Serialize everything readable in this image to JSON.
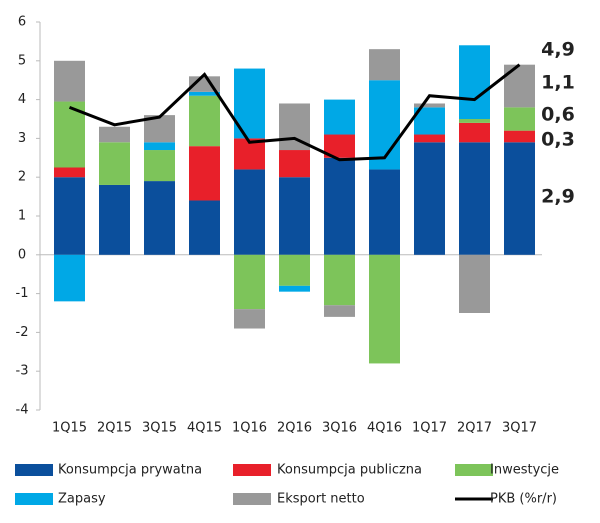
{
  "chart_data": {
    "type": "bar",
    "stacked": true,
    "categories": [
      "1Q15",
      "2Q15",
      "3Q15",
      "4Q15",
      "1Q16",
      "2Q16",
      "3Q16",
      "4Q16",
      "1Q17",
      "2Q17",
      "3Q17"
    ],
    "series": [
      {
        "name": "Konsumpcja prywatna",
        "color": "#0b4f9c",
        "values": [
          2.0,
          1.8,
          1.9,
          1.4,
          2.2,
          2.0,
          2.5,
          2.2,
          2.9,
          2.9,
          2.9
        ]
      },
      {
        "name": "Konsumpcja publiczna",
        "color": "#e8202a",
        "values": [
          0.25,
          0,
          0,
          1.4,
          0.8,
          0.7,
          0.6,
          0,
          0.2,
          0.5,
          0.3
        ]
      },
      {
        "name": "Inwestycje",
        "color": "#7dc45a",
        "values": [
          1.7,
          1.1,
          0.8,
          1.3,
          -1.4,
          -0.8,
          -1.3,
          -2.8,
          0,
          0.1,
          0.6
        ]
      },
      {
        "name": "Zapasy",
        "color": "#00a8e6",
        "values": [
          -1.2,
          0,
          0.2,
          0.1,
          1.8,
          -0.15,
          0.9,
          2.3,
          0.7,
          1.9,
          0
        ]
      },
      {
        "name": "Eksport netto",
        "color": "#999999",
        "values": [
          1.05,
          0.4,
          0.7,
          0.4,
          -0.5,
          1.2,
          -0.3,
          0.8,
          0.1,
          -1.5,
          1.1
        ]
      },
      {
        "name": "PKB (%r/r)",
        "color": "#000000",
        "type": "line",
        "values": [
          3.8,
          3.35,
          3.55,
          4.65,
          2.9,
          3.0,
          2.45,
          2.5,
          4.1,
          4.0,
          4.9
        ]
      }
    ],
    "ylim": [
      -4,
      6
    ],
    "yticks": [
      -4,
      -3,
      -2,
      -1,
      0,
      1,
      2,
      3,
      4,
      5,
      6
    ],
    "annotations": [
      {
        "text": "4,9",
        "color": "#000000"
      },
      {
        "text": "1,1",
        "color": "#999999"
      },
      {
        "text": "0,6",
        "color": "#7dc45a"
      },
      {
        "text": "0,3",
        "color": "#e8202a"
      },
      {
        "text": "2,9",
        "color": "#0b4f9c"
      }
    ]
  }
}
